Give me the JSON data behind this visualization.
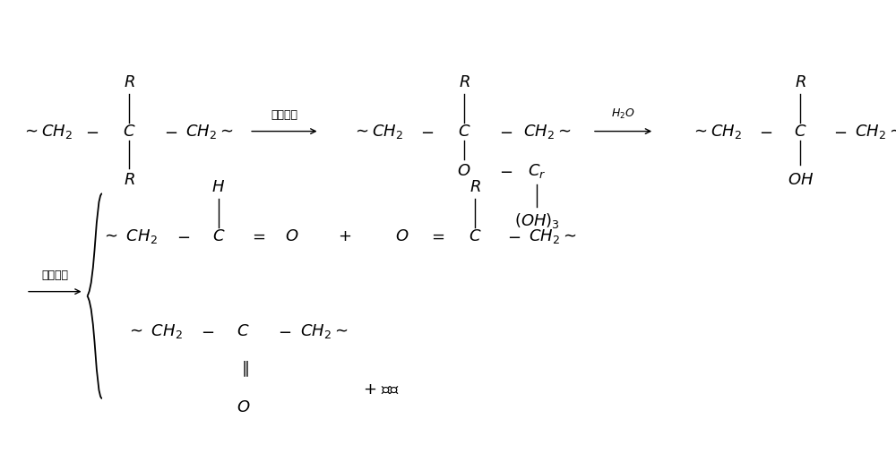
{
  "bg_color": "#ffffff",
  "text_color": "#000000",
  "font_size": 13,
  "font_size_small": 9,
  "italic_font": "DejaVu Serif",
  "fig_width": 10.0,
  "fig_height": 5.16
}
